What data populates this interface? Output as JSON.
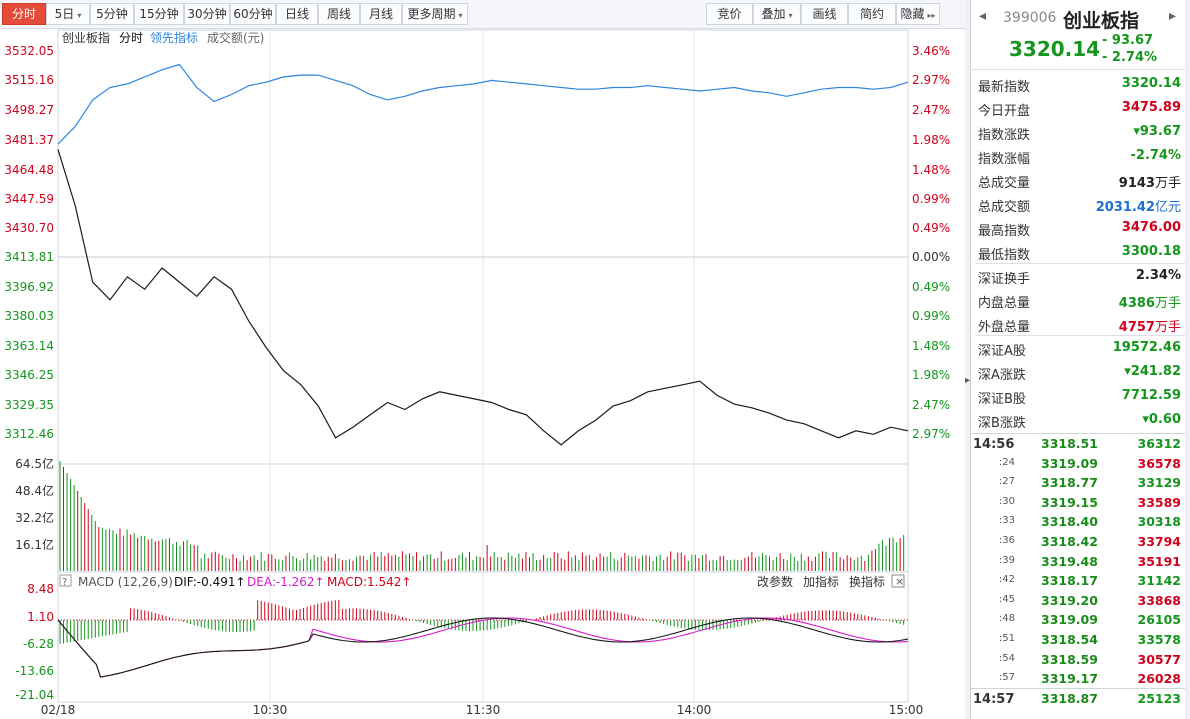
{
  "toolbar": {
    "tabs": [
      {
        "label": "分时",
        "caret": false,
        "active": true
      },
      {
        "label": "5日",
        "caret": true
      },
      {
        "label": "5分钟",
        "caret": false
      },
      {
        "label": "15分钟",
        "caret": false
      },
      {
        "label": "30分钟",
        "caret": false
      },
      {
        "label": "60分钟",
        "caret": false
      },
      {
        "label": "日线",
        "caret": false
      },
      {
        "label": "周线",
        "caret": false
      },
      {
        "label": "月线",
        "caret": false
      },
      {
        "label": "更多周期",
        "caret": true
      }
    ],
    "right_buttons": [
      {
        "label": "竞价",
        "caret": false
      },
      {
        "label": "叠加",
        "caret": true
      },
      {
        "label": "画线",
        "caret": false
      },
      {
        "label": "简约",
        "caret": false
      },
      {
        "label": "隐藏",
        "caret": false,
        "suffix": "▸▸"
      }
    ]
  },
  "chart_header": {
    "name": "创业板指",
    "mode": "分时",
    "lead": "领先指标",
    "amount": "成交额(元)"
  },
  "price_axis": {
    "left": [
      "3532.05",
      "3515.16",
      "3498.27",
      "3481.37",
      "3464.48",
      "3447.59",
      "3430.70",
      "3413.81",
      "3396.92",
      "3380.03",
      "3363.14",
      "3346.25",
      "3329.35",
      "3312.46"
    ],
    "right": [
      "3.46%",
      "2.97%",
      "2.47%",
      "1.98%",
      "1.48%",
      "0.99%",
      "0.49%",
      "0.00%",
      "0.49%",
      "0.99%",
      "1.48%",
      "1.98%",
      "2.47%",
      "2.97%"
    ]
  },
  "volume_axis": [
    "64.5亿",
    "48.4亿",
    "32.2亿",
    "16.1亿"
  ],
  "macd": {
    "title": "MACD (12,26,9)",
    "dif": "DIF:-0.491",
    "dea": "DEA:-1.262",
    "macd": "MACD:1.542",
    "links": [
      "改参数",
      "加指标",
      "换指标"
    ],
    "axis": [
      "8.48",
      "1.10",
      "-6.28",
      "-13.66",
      "-21.04"
    ]
  },
  "time_axis": [
    "02/18",
    "10:30",
    "11:30",
    "14:00",
    "15:00"
  ],
  "colors": {
    "price_line": "#1a1a1a",
    "lead_line": "#2e86de",
    "up": "#d0021b",
    "down": "#14951d",
    "dif": "#1a1a1a",
    "dea": "#d81bcf"
  },
  "chart_data": {
    "type": "line",
    "series": [
      {
        "name": "创业板指",
        "values": [
          3477,
          3445,
          3402,
          3392,
          3405,
          3398,
          3410,
          3402,
          3394,
          3405,
          3398,
          3380,
          3365,
          3352,
          3344,
          3332,
          3314,
          3320,
          3327,
          3334,
          3330,
          3336,
          3340,
          3338,
          3336,
          3334,
          3330,
          3327,
          3318,
          3310,
          3318,
          3324,
          3332,
          3335,
          3340,
          3342,
          3344,
          3346,
          3338,
          3333,
          3331,
          3328,
          3324,
          3322,
          3318,
          3314,
          3318,
          3316,
          3320,
          3318
        ],
        "ylim": [
          3306,
          3536
        ]
      },
      {
        "name": "领先指标",
        "values": [
          3480,
          3490,
          3505,
          3512,
          3514,
          3518,
          3522,
          3525,
          3512,
          3504,
          3508,
          3513,
          3515,
          3518,
          3519,
          3519,
          3516,
          3513,
          3508,
          3505,
          3507,
          3510,
          3512,
          3513,
          3514,
          3516,
          3515,
          3514,
          3513,
          3512,
          3511,
          3511,
          3512,
          3512,
          3513,
          3512,
          3511,
          3510,
          3511,
          3512,
          3510,
          3509,
          3507,
          3509,
          3511,
          3512,
          3512,
          3511,
          3512,
          3515
        ],
        "ylim": [
          3306,
          3536
        ]
      }
    ],
    "ylim": [
      3312.46,
      3532.05
    ],
    "xlabel": "",
    "ylabel": ""
  },
  "stock": {
    "code": "399006",
    "name": "创业板指",
    "price": "3320.14",
    "change": "- 93.67",
    "pct": "- 2.74%"
  },
  "stats": [
    {
      "label": "最新指数",
      "value": "3320.14",
      "cls": "green",
      "unit": ""
    },
    {
      "label": "今日开盘",
      "value": "3475.89",
      "cls": "red",
      "unit": ""
    },
    {
      "label": "指数涨跌",
      "value": "▾93.67",
      "cls": "green",
      "unit": ""
    },
    {
      "label": "指数涨幅",
      "value": "-2.74%",
      "cls": "green",
      "unit": ""
    },
    {
      "label": "总成交量",
      "value": "9143",
      "cls": "blk",
      "unit": "万手"
    },
    {
      "label": "总成交额",
      "value": "2031.42",
      "cls": "blue",
      "unit": "亿元"
    },
    {
      "label": "最高指数",
      "value": "3476.00",
      "cls": "red",
      "unit": ""
    },
    {
      "label": "最低指数",
      "value": "3300.18",
      "cls": "green",
      "unit": ""
    },
    {
      "label": "深证换手",
      "value": "2.34%",
      "cls": "blk",
      "unit": ""
    },
    {
      "label": "内盘总量",
      "value": "4386",
      "cls": "green",
      "unit": "万手"
    },
    {
      "label": "外盘总量",
      "value": "4757",
      "cls": "red",
      "unit": "万手"
    },
    {
      "label": "深证A股",
      "value": "19572.46",
      "cls": "green",
      "unit": ""
    },
    {
      "label": "深A涨跌",
      "value": "▾241.82",
      "cls": "green",
      "unit": ""
    },
    {
      "label": "深证B股",
      "value": "7712.59",
      "cls": "green",
      "unit": ""
    },
    {
      "label": "深B涨跌",
      "value": "▾0.60",
      "cls": "green",
      "unit": ""
    }
  ],
  "ticks": [
    {
      "time": "14:56",
      "price": "3318.51",
      "vol": "36312",
      "vcls": "green",
      "major": true
    },
    {
      "time": ":24",
      "price": "3319.09",
      "vol": "36578",
      "vcls": "red"
    },
    {
      "time": ":27",
      "price": "3318.77",
      "vol": "33129",
      "vcls": "green"
    },
    {
      "time": ":30",
      "price": "3319.15",
      "vol": "33589",
      "vcls": "red"
    },
    {
      "time": ":33",
      "price": "3318.40",
      "vol": "30318",
      "vcls": "green"
    },
    {
      "time": ":36",
      "price": "3318.42",
      "vol": "33794",
      "vcls": "red"
    },
    {
      "time": ":39",
      "price": "3319.48",
      "vol": "35191",
      "vcls": "red"
    },
    {
      "time": ":42",
      "price": "3318.17",
      "vol": "31142",
      "vcls": "green"
    },
    {
      "time": ":45",
      "price": "3319.20",
      "vol": "33868",
      "vcls": "red"
    },
    {
      "time": ":48",
      "price": "3319.09",
      "vol": "26105",
      "vcls": "green"
    },
    {
      "time": ":51",
      "price": "3318.54",
      "vol": "33578",
      "vcls": "green"
    },
    {
      "time": ":54",
      "price": "3318.59",
      "vol": "30577",
      "vcls": "red"
    },
    {
      "time": ":57",
      "price": "3319.17",
      "vol": "26028",
      "vcls": "red"
    },
    {
      "time": "14:57",
      "price": "3318.87",
      "vol": "25123",
      "vcls": "green",
      "major": true
    }
  ]
}
